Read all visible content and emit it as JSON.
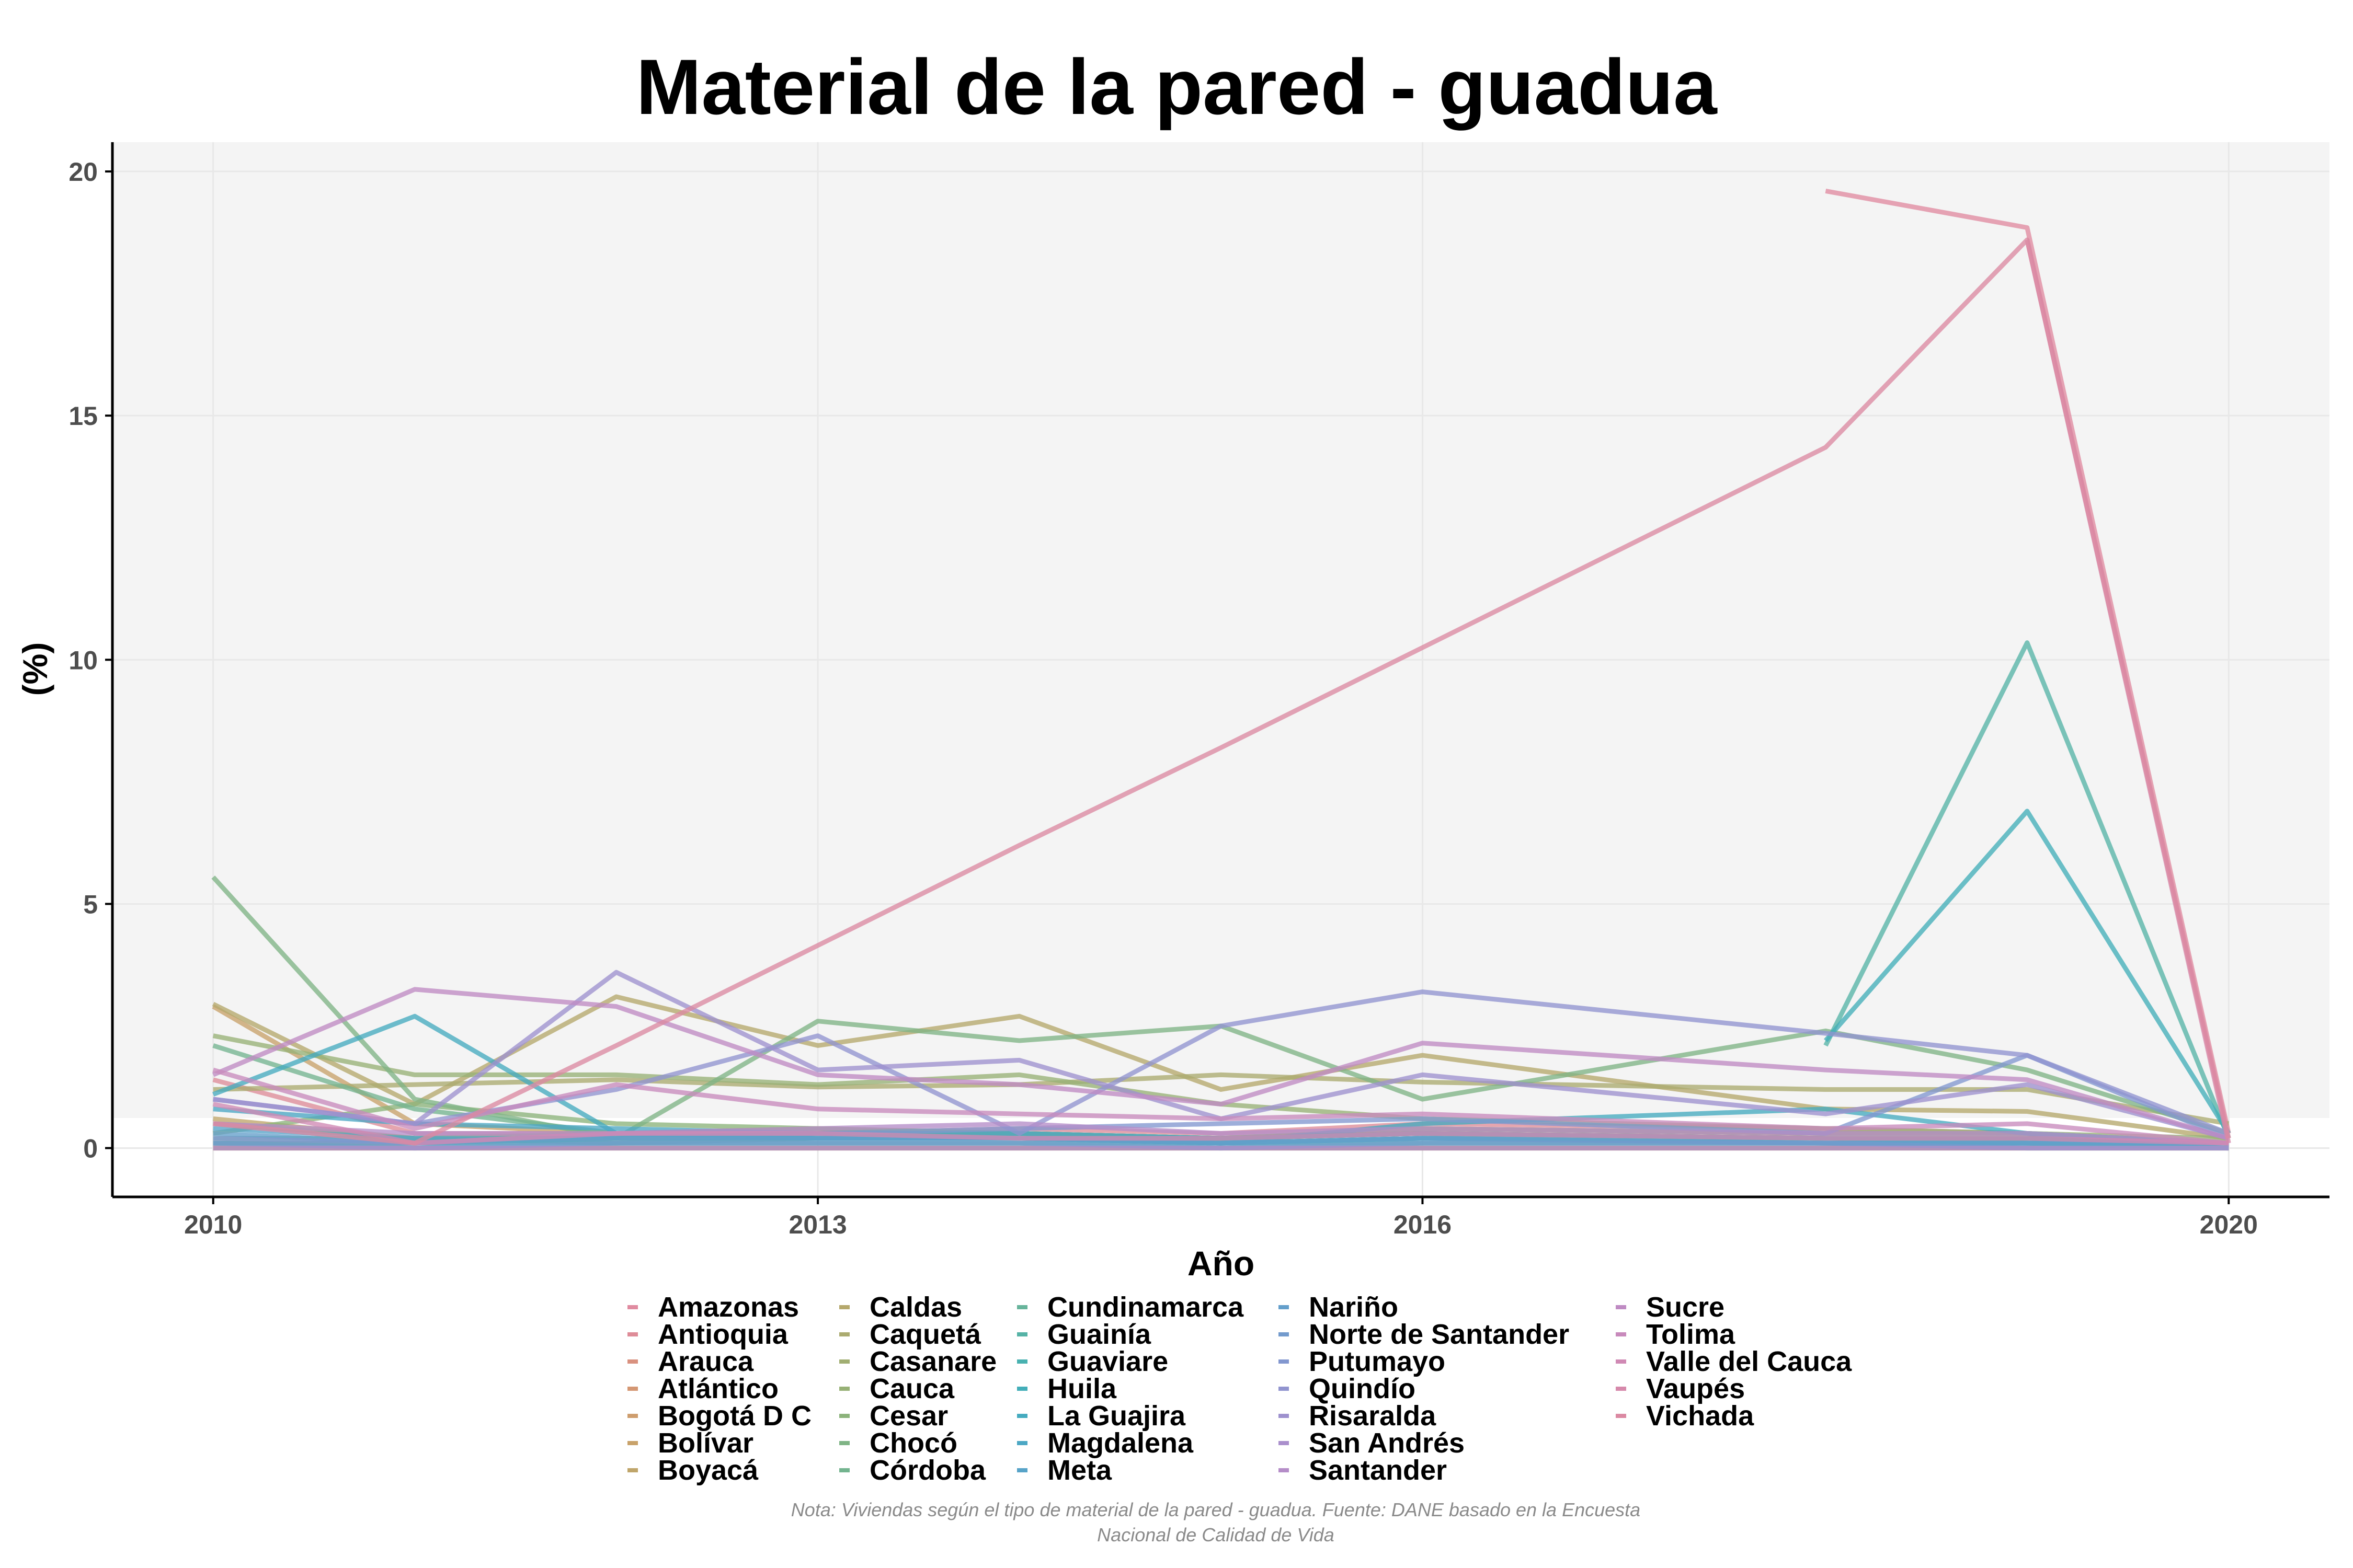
{
  "chart_data": {
    "type": "line",
    "title": "Material de la pared - guadua",
    "xlabel": "Año",
    "ylabel": "(%)",
    "xlim": [
      2009.5,
      2020.5
    ],
    "ylim": [
      -1,
      20.6
    ],
    "x_ticks": [
      "2010",
      "2013",
      "2016",
      "2020"
    ],
    "y_ticks": [
      "0",
      "5",
      "10",
      "15",
      "20"
    ],
    "x": [
      2010,
      2011,
      2012,
      2013,
      2014,
      2015,
      2016,
      2018,
      2019,
      2020
    ],
    "legend_position": "bottom",
    "grid": true,
    "series": [
      {
        "name": "Amazonas",
        "color": "#E08BA0",
        "values": [
          null,
          null,
          null,
          null,
          null,
          null,
          null,
          19.6,
          18.85,
          0.3
        ]
      },
      {
        "name": "Antioquia",
        "color": "#DE8C98",
        "values": [
          1.4,
          0.3,
          0.3,
          0.3,
          0.4,
          0.3,
          0.5,
          0.4,
          0.3,
          0.1
        ]
      },
      {
        "name": "Arauca",
        "color": "#D9917F",
        "values": [
          0.1,
          0.1,
          0.2,
          0.2,
          0.2,
          0.2,
          0.3,
          0.2,
          0.2,
          0.1
        ]
      },
      {
        "name": "Atlántico",
        "color": "#D49773",
        "values": [
          0.0,
          0.0,
          0.0,
          0.0,
          0.0,
          0.0,
          0.0,
          0.0,
          0.0,
          0.0
        ]
      },
      {
        "name": "Bogotá D C",
        "color": "#CE9D6D",
        "values": [
          0.0,
          0.0,
          0.0,
          0.0,
          0.0,
          0.0,
          0.0,
          0.0,
          0.0,
          0.0
        ]
      },
      {
        "name": "Bolívar",
        "color": "#C8A26A",
        "values": [
          2.9,
          0.5,
          0.3,
          0.4,
          0.3,
          0.2,
          0.4,
          0.3,
          0.3,
          0.1
        ]
      },
      {
        "name": "Boyacá",
        "color": "#BFA56A",
        "values": [
          0.6,
          0.2,
          0.2,
          0.3,
          0.3,
          0.2,
          0.3,
          0.2,
          0.2,
          0.1
        ]
      },
      {
        "name": "Caldas",
        "color": "#B5A86C",
        "values": [
          2.95,
          0.9,
          3.1,
          2.1,
          2.7,
          1.2,
          1.9,
          0.8,
          0.75,
          0.2
        ]
      },
      {
        "name": "Caquetá",
        "color": "#ABAB70",
        "values": [
          1.2,
          1.3,
          1.4,
          1.25,
          1.3,
          1.5,
          1.35,
          1.2,
          1.2,
          0.5
        ]
      },
      {
        "name": "Casanare",
        "color": "#A1AE72",
        "values": [
          0.5,
          0.2,
          0.3,
          0.3,
          0.2,
          0.2,
          0.4,
          0.3,
          0.3,
          0.1
        ]
      },
      {
        "name": "Cauca",
        "color": "#97B176",
        "values": [
          2.3,
          1.5,
          1.5,
          1.3,
          1.5,
          0.9,
          0.6,
          0.4,
          0.3,
          0.2
        ]
      },
      {
        "name": "Cesar",
        "color": "#8CB37B",
        "values": [
          0.3,
          0.9,
          0.5,
          0.4,
          0.3,
          0.2,
          0.3,
          0.2,
          0.2,
          0.1
        ]
      },
      {
        "name": "Chocó",
        "color": "#7FB485",
        "values": [
          5.55,
          1.0,
          0.2,
          2.6,
          2.2,
          2.5,
          1.0,
          2.4,
          1.6,
          0.3
        ]
      },
      {
        "name": "Córdoba",
        "color": "#73B48F",
        "values": [
          2.1,
          0.8,
          0.3,
          0.2,
          0.3,
          0.2,
          0.3,
          0.2,
          0.2,
          0.1
        ]
      },
      {
        "name": "Cundinamarca",
        "color": "#67B49B",
        "values": [
          0.2,
          0.2,
          0.1,
          0.2,
          0.2,
          0.1,
          0.2,
          0.2,
          0.1,
          0.1
        ]
      },
      {
        "name": "Guainía",
        "color": "#56B3A6",
        "values": [
          null,
          null,
          null,
          null,
          null,
          null,
          null,
          2.1,
          10.35,
          0.2
        ]
      },
      {
        "name": "Guaviare",
        "color": "#48B1B0",
        "values": [
          0.1,
          0.1,
          0.1,
          0.1,
          0.1,
          0.1,
          0.1,
          0.1,
          0.1,
          0.0
        ]
      },
      {
        "name": "Huila",
        "color": "#43AEB9",
        "values": [
          null,
          null,
          null,
          null,
          null,
          null,
          null,
          2.2,
          6.9,
          0.3
        ]
      },
      {
        "name": "La Guajira",
        "color": "#45ABBF",
        "values": [
          1.1,
          2.7,
          0.3,
          0.2,
          0.2,
          0.1,
          0.5,
          0.8,
          0.3,
          0.1
        ]
      },
      {
        "name": "Magdalena",
        "color": "#4CA7C4",
        "values": [
          0.8,
          0.5,
          0.4,
          0.3,
          0.3,
          0.2,
          0.3,
          0.2,
          0.2,
          0.1
        ]
      },
      {
        "name": "Meta",
        "color": "#57A3C8",
        "values": [
          0.4,
          0.2,
          0.2,
          0.2,
          0.2,
          0.1,
          0.2,
          0.1,
          0.1,
          0.1
        ]
      },
      {
        "name": "Nariño",
        "color": "#649FCB",
        "values": [
          0.3,
          0.1,
          0.2,
          0.2,
          0.2,
          0.1,
          0.2,
          0.1,
          0.1,
          0.1
        ]
      },
      {
        "name": "Norte de Santander",
        "color": "#739BCD",
        "values": [
          0.1,
          0.0,
          0.1,
          0.1,
          0.1,
          0.0,
          0.1,
          0.1,
          0.0,
          0.0
        ]
      },
      {
        "name": "Putumayo",
        "color": "#8297CF",
        "values": [
          0.2,
          0.1,
          0.3,
          0.3,
          0.4,
          0.5,
          0.6,
          0.3,
          1.9,
          0.2
        ]
      },
      {
        "name": "Quindío",
        "color": "#9194CF",
        "values": [
          1.0,
          0.5,
          1.2,
          2.3,
          0.3,
          2.5,
          3.2,
          2.35,
          1.9,
          0.3
        ]
      },
      {
        "name": "Risaralda",
        "color": "#9E91CE",
        "values": [
          1.0,
          0.5,
          3.6,
          1.6,
          1.8,
          0.6,
          1.5,
          0.7,
          1.3,
          0.2
        ]
      },
      {
        "name": "San Andrés",
        "color": "#AA8FCC",
        "values": [
          0.0,
          0.0,
          0.0,
          0.0,
          0.0,
          0.0,
          0.0,
          0.0,
          0.0,
          0.0
        ]
      },
      {
        "name": "Santander",
        "color": "#B58DC8",
        "values": [
          0.5,
          0.3,
          0.3,
          0.4,
          0.5,
          0.3,
          0.4,
          0.3,
          0.3,
          0.1
        ]
      },
      {
        "name": "Sucre",
        "color": "#BF8BC3",
        "values": [
          1.5,
          3.25,
          2.9,
          1.5,
          1.3,
          0.9,
          2.15,
          1.6,
          1.4,
          0.2
        ]
      },
      {
        "name": "Tolima",
        "color": "#C88ABC",
        "values": [
          1.6,
          0.4,
          1.3,
          0.8,
          0.7,
          0.6,
          0.7,
          0.4,
          0.5,
          0.1
        ]
      },
      {
        "name": "Valle del Cauca",
        "color": "#D089B4",
        "values": [
          0.9,
          0.1,
          0.3,
          0.3,
          0.2,
          0.2,
          0.3,
          0.2,
          0.2,
          0.1
        ]
      },
      {
        "name": "Vaupés",
        "color": "#D689AB",
        "values": [
          null,
          null,
          null,
          null,
          null,
          null,
          null,
          null,
          18.6,
          0.1
        ]
      },
      {
        "name": "Vichada",
        "color": "#DB89A2",
        "values": [
          0.5,
          0.1,
          2.1,
          4.15,
          6.2,
          8.2,
          10.25,
          14.35,
          18.6,
          0.2
        ]
      }
    ]
  },
  "note": {
    "line1": "Nota: Viviendas según el tipo de material de la pared - guadua. Fuente: DANE basado en la Encuesta",
    "line2": "Nacional de Calidad de Vida"
  }
}
